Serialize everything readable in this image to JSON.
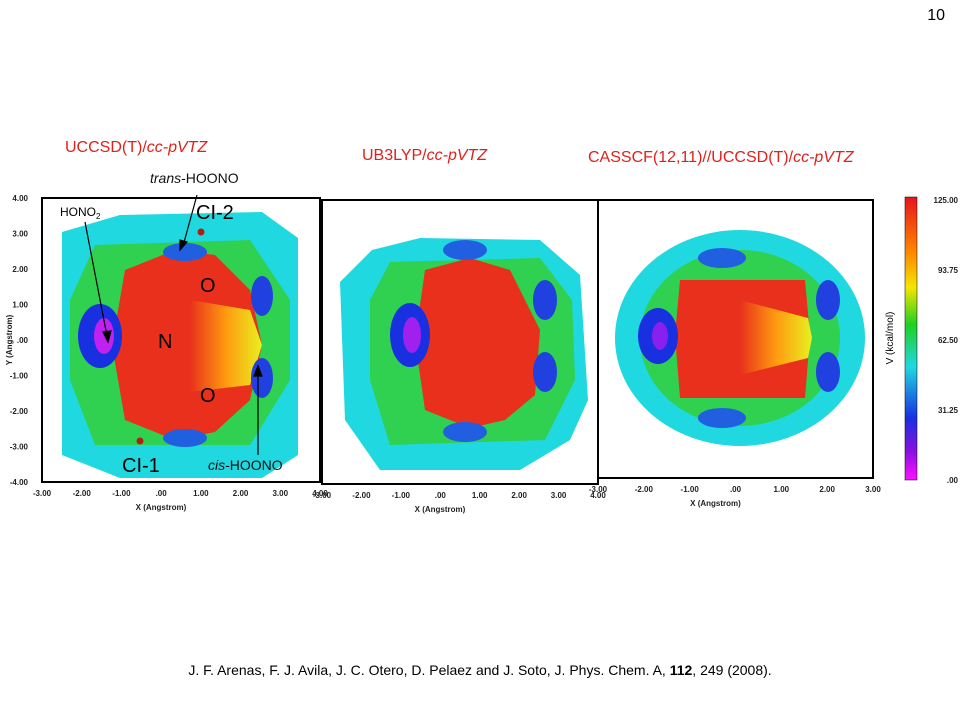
{
  "page_number": "10",
  "panels": [
    {
      "title": {
        "method": "UCCSD(T)/",
        "basis": "cc-pVTZ"
      },
      "x_label": "X (Angstrom)",
      "y_label": "Y (Angstrom)",
      "x_ticks": [
        "-3.00",
        "-2.00",
        "-1.00",
        ".00",
        "1.00",
        "2.00",
        "3.00",
        "4.00"
      ],
      "y_ticks": [
        "4.00",
        "3.00",
        "2.00",
        "1.00",
        ".00",
        "-1.00",
        "-2.00",
        "-3.00",
        "-4.00"
      ]
    },
    {
      "title": {
        "method": "UB3LYP/",
        "basis": "cc-pVTZ"
      },
      "x_label": "X (Angstrom)",
      "x_ticks": [
        "-3.00",
        "-2.00",
        "-1.00",
        ".00",
        "1.00",
        "2.00",
        "3.00",
        "4.00"
      ]
    },
    {
      "title": {
        "method": "CASSCF(12,11)//UCCSD(T)/",
        "basis": "cc-pVTZ"
      },
      "x_label": "X (Angstrom)",
      "x_ticks": [
        "-3.00",
        "-2.00",
        "-1.00",
        ".00",
        "1.00",
        "2.00",
        "3.00"
      ]
    }
  ],
  "annotations": {
    "trans_prefix": "trans",
    "trans_rest": "-HOONO",
    "hono_main": "HONO",
    "hono_sub": "2",
    "ci2": "CI-2",
    "ci1": "CI-1",
    "o_top": "O",
    "n": "N",
    "o_bottom": "O",
    "cis_prefix": "cis",
    "cis_rest": "-HOONO"
  },
  "colorbar": {
    "label": "V (kcal/mol)",
    "ticks": [
      "125.00",
      "93.75",
      "62.50",
      "31.25",
      ".00"
    ]
  },
  "citation": {
    "before": "J. F. Arenas, F. J. Avila, J. C. Otero, D. Pelaez and J. Soto, J. Phys. Chem. A, ",
    "volume": "112",
    "after": ", 249 (2008)."
  }
}
